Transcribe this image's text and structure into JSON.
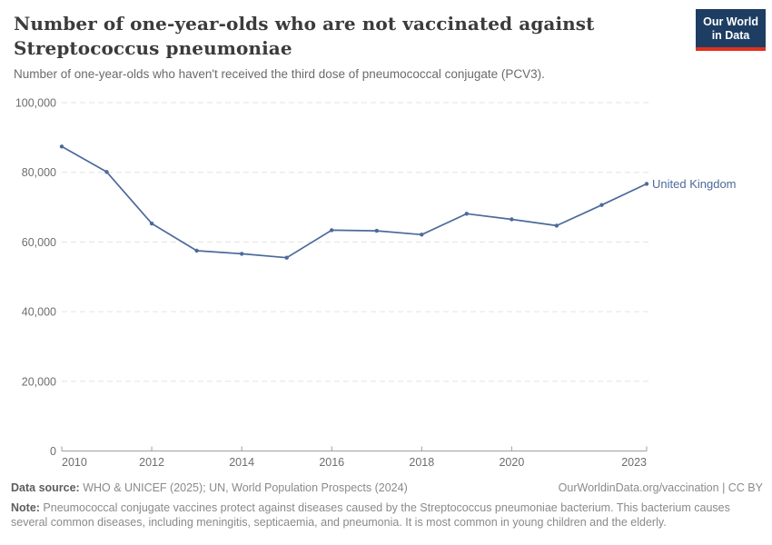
{
  "header": {
    "title_lines": [
      "Number of one-year-olds who are not vaccinated against",
      "Streptococcus pneumoniae"
    ],
    "subtitle": "Number of one-year-olds who haven't received the third dose of pneumococcal conjugate (PCV3)."
  },
  "logo": {
    "line1": "Our World",
    "line2": "in Data",
    "bg_color": "#1d3d63",
    "bar_color": "#e0301e"
  },
  "chart_data": {
    "type": "line",
    "title": "Number of one-year-olds who are not vaccinated against Streptococcus pneumoniae",
    "xlabel": "",
    "ylabel": "",
    "xlim": [
      2010,
      2023
    ],
    "ylim": [
      0,
      100000
    ],
    "grid": "dashed horizontal gridlines, solid x-axis",
    "x_ticks": [
      2010,
      2012,
      2014,
      2016,
      2018,
      2020,
      2023
    ],
    "y_ticks": [
      0,
      20000,
      40000,
      60000,
      80000,
      100000
    ],
    "x": [
      2010,
      2011,
      2012,
      2013,
      2014,
      2015,
      2016,
      2017,
      2018,
      2019,
      2020,
      2021,
      2022,
      2023
    ],
    "series": [
      {
        "name": "United Kingdom",
        "color": "#4C6A9C",
        "values": [
          87400,
          80100,
          65300,
          57500,
          56600,
          55500,
          63400,
          63200,
          62100,
          68100,
          66500,
          64700,
          70600,
          76700
        ]
      }
    ],
    "legend_position": "end-of-line label",
    "colors": {
      "gridline": "#e3e3e3",
      "axis": "#a0a0a0",
      "tick_label": "#6e6e6e"
    }
  },
  "footer": {
    "data_source_label": "Data source:",
    "data_source_text": " WHO & UNICEF (2025); UN, World Population Prospects (2024)",
    "rights": "OurWorldinData.org/vaccination | CC BY",
    "note_label": "Note:",
    "note_text": " Pneumococcal conjugate vaccines protect against diseases caused by the Streptococcus pneumoniae bacterium. This bacterium causes several common diseases, including meningitis, septicaemia, and pneumonia. It is most common in young children and the elderly."
  }
}
